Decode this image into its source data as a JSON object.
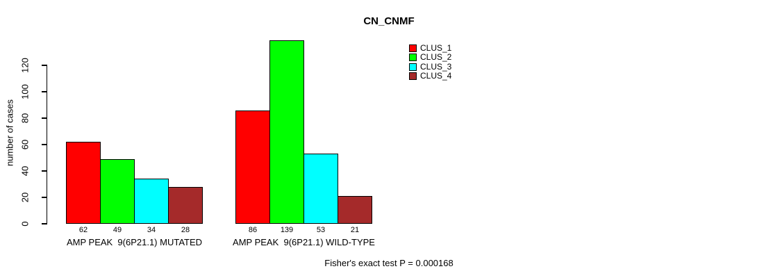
{
  "chart_data": {
    "type": "bar",
    "title": "CN_CNMF",
    "ylabel": "number of cases",
    "categories": [
      "AMP PEAK  9(6P21.1) MUTATED",
      "AMP PEAK  9(6P21.1) WILD-TYPE"
    ],
    "series": [
      {
        "name": "CLUS_1",
        "color": "#FF0000",
        "values": [
          62,
          86
        ]
      },
      {
        "name": "CLUS_2",
        "color": "#00FF00",
        "values": [
          49,
          139
        ]
      },
      {
        "name": "CLUS_3",
        "color": "#00FFFF",
        "values": [
          34,
          53
        ]
      },
      {
        "name": "CLUS_4",
        "color": "#A52A2A",
        "values": [
          28,
          21
        ]
      }
    ],
    "yticks": [
      0,
      20,
      40,
      60,
      80,
      100,
      120
    ],
    "ylim": [
      0,
      139
    ],
    "grid": false,
    "legend_position": "top-right",
    "legend_labels": [
      "CLUS_1",
      "CLUS_2",
      "CLUS_3",
      "CLUS_4"
    ],
    "annotation": "Fisher's exact test P = 0.000168",
    "background_color": "#FFFFFF",
    "axis_color": "#000000"
  }
}
